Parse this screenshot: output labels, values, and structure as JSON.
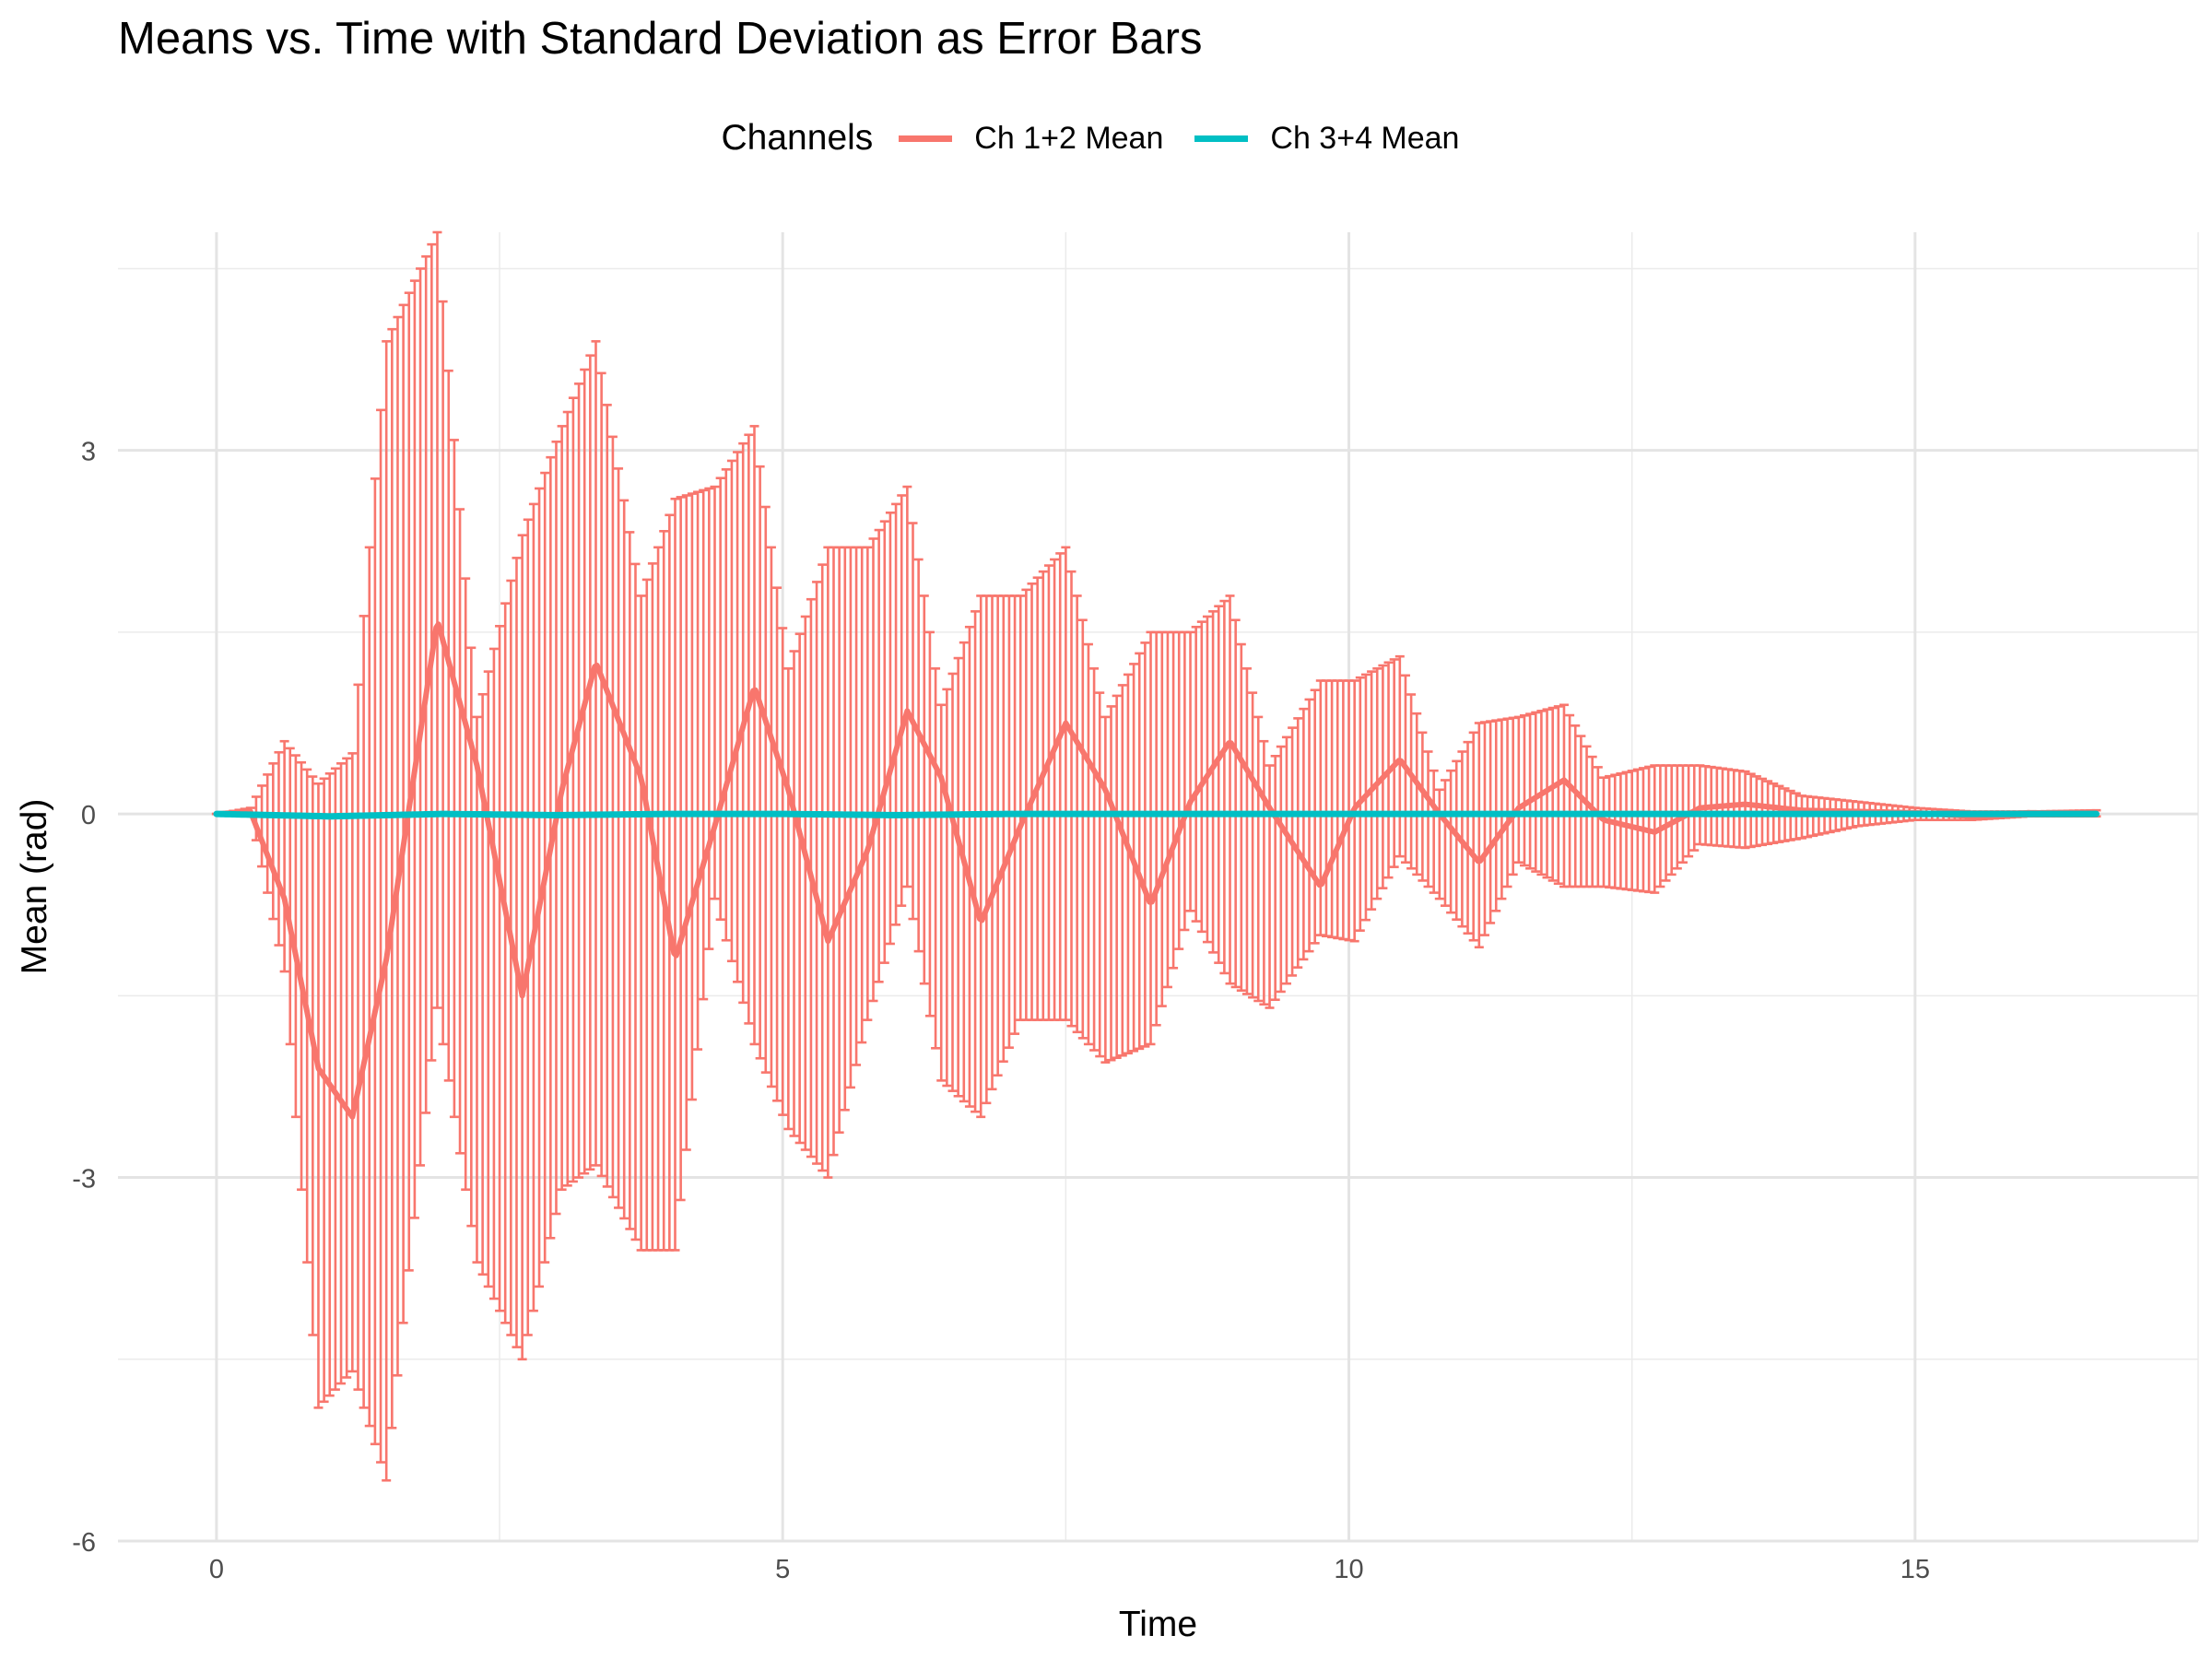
{
  "chart_data": {
    "type": "line",
    "title": "Means vs. Time with Standard Deviation as Error Bars",
    "xlabel": "Time",
    "ylabel": "Mean (rad)",
    "xlim": [
      -0.87,
      17.5
    ],
    "ylim": [
      -6,
      4.8
    ],
    "xticks": [
      0,
      5,
      10,
      15
    ],
    "yticks": [
      -6,
      -3,
      0,
      3
    ],
    "x_tick_labels": [
      "0",
      "5",
      "10",
      "15"
    ],
    "y_tick_labels": [
      "-6",
      "-3",
      "0",
      "3"
    ],
    "grid": true,
    "legend": {
      "title": "Channels",
      "position": "top"
    },
    "x_range": [
      0,
      16.6
    ],
    "series": [
      {
        "name": "Ch 1+2 Mean",
        "color": "#F8766D",
        "kind": "line_with_error_bars",
        "x": [
          0,
          0.3,
          0.6,
          0.9,
          1.2,
          1.5,
          1.95,
          2.3,
          2.7,
          3.05,
          3.35,
          3.75,
          4.05,
          4.4,
          4.75,
          5.05,
          5.4,
          5.75,
          6.1,
          6.4,
          6.75,
          7.1,
          7.5,
          7.85,
          8.25,
          8.6,
          8.95,
          9.3,
          9.75,
          10.05,
          10.45,
          10.8,
          11.15,
          11.5,
          11.9,
          12.25,
          12.7,
          13.1,
          13.5,
          14.0,
          14.5,
          15.0,
          15.5,
          16.0,
          16.6
        ],
        "mean": [
          0,
          0.02,
          -0.7,
          -2.1,
          -2.5,
          -1.2,
          1.6,
          0.4,
          -1.5,
          0.2,
          1.25,
          0.3,
          -1.2,
          -0.1,
          1.05,
          0.2,
          -1.05,
          -0.3,
          0.85,
          0.3,
          -0.9,
          -0.1,
          0.75,
          0.2,
          -0.75,
          0.1,
          0.6,
          0.05,
          -0.6,
          0.05,
          0.45,
          0,
          -0.4,
          0.05,
          0.28,
          -0.05,
          -0.15,
          0.05,
          0.08,
          0.03,
          0.02,
          0.01,
          -0.02,
          0.01,
          0
        ],
        "upper": [
          0,
          0.05,
          0.6,
          0.25,
          0.5,
          3.9,
          4.8,
          0.8,
          2.3,
          3.2,
          3.9,
          1.8,
          2.6,
          2.7,
          3.2,
          1.2,
          2.2,
          2.2,
          2.7,
          0.9,
          1.8,
          1.8,
          2.2,
          0.8,
          1.5,
          1.5,
          1.8,
          0.4,
          1.1,
          1.1,
          1.3,
          0.2,
          0.75,
          0.8,
          0.9,
          0.3,
          0.4,
          0.4,
          0.35,
          0.15,
          0.1,
          0.05,
          0.02,
          0.02,
          0.03
        ],
        "lower": [
          0,
          0,
          -1.3,
          -4.9,
          -4.6,
          -5.5,
          -1.6,
          -3.7,
          -4.5,
          -3.1,
          -2.9,
          -3.6,
          -3.6,
          -0.7,
          -1.9,
          -2.6,
          -3.0,
          -1.7,
          -0.6,
          -2.2,
          -2.5,
          -1.7,
          -1.7,
          -2.05,
          -1.9,
          -0.8,
          -1.4,
          -1.6,
          -1.0,
          -1.05,
          -0.35,
          -0.7,
          -1.1,
          -0.4,
          -0.6,
          -0.6,
          -0.65,
          -0.25,
          -0.28,
          -0.2,
          -0.1,
          -0.05,
          -0.05,
          -0.02,
          -0.02
        ]
      },
      {
        "name": "Ch 3+4 Mean",
        "color": "#00BFC4",
        "kind": "line",
        "x": [
          0,
          1,
          2,
          3,
          4,
          5,
          6,
          7,
          8,
          9,
          10,
          11,
          12,
          13,
          14,
          15,
          16,
          16.6
        ],
        "mean": [
          0,
          -0.02,
          0,
          -0.01,
          0,
          0,
          -0.01,
          0,
          0,
          0,
          0,
          0,
          0,
          0,
          0,
          0,
          0,
          0
        ]
      }
    ]
  }
}
